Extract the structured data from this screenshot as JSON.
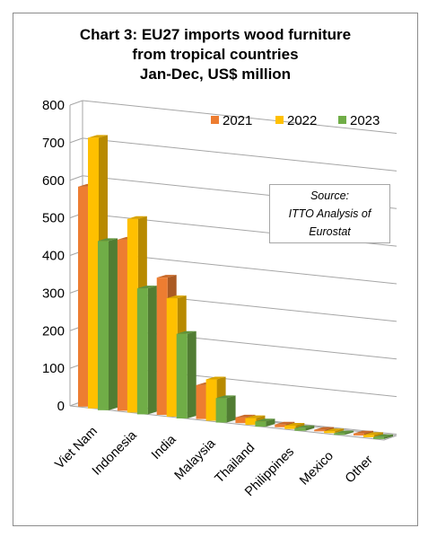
{
  "chart_data": {
    "type": "bar",
    "title_lines": [
      "Chart 3: EU27 imports wood furniture",
      "from tropical countries",
      "Jan-Dec, US$ million"
    ],
    "categories": [
      "Viet Nam",
      "Indonesia",
      "India",
      "Malaysia",
      "Thailand",
      "Philippines",
      "Mexico",
      "Other"
    ],
    "series": [
      {
        "name": "2021",
        "color": "#ed7d31",
        "values": [
          585,
          455,
          365,
          90,
          15,
          7,
          4,
          5
        ]
      },
      {
        "name": "2022",
        "color": "#ffc000",
        "values": [
          720,
          515,
          315,
          110,
          18,
          9,
          5,
          6
        ]
      },
      {
        "name": "2023",
        "color": "#70ad47",
        "values": [
          450,
          335,
          225,
          65,
          14,
          7,
          4,
          5
        ]
      }
    ],
    "ylim": [
      0,
      800
    ],
    "yticks": [
      "0",
      "100",
      "200",
      "300",
      "400",
      "500",
      "600",
      "700",
      "800"
    ],
    "grid": true,
    "legend": "top-right",
    "source_lines": [
      "Source:",
      "ITTO Analysis of",
      "Eurostat"
    ]
  }
}
